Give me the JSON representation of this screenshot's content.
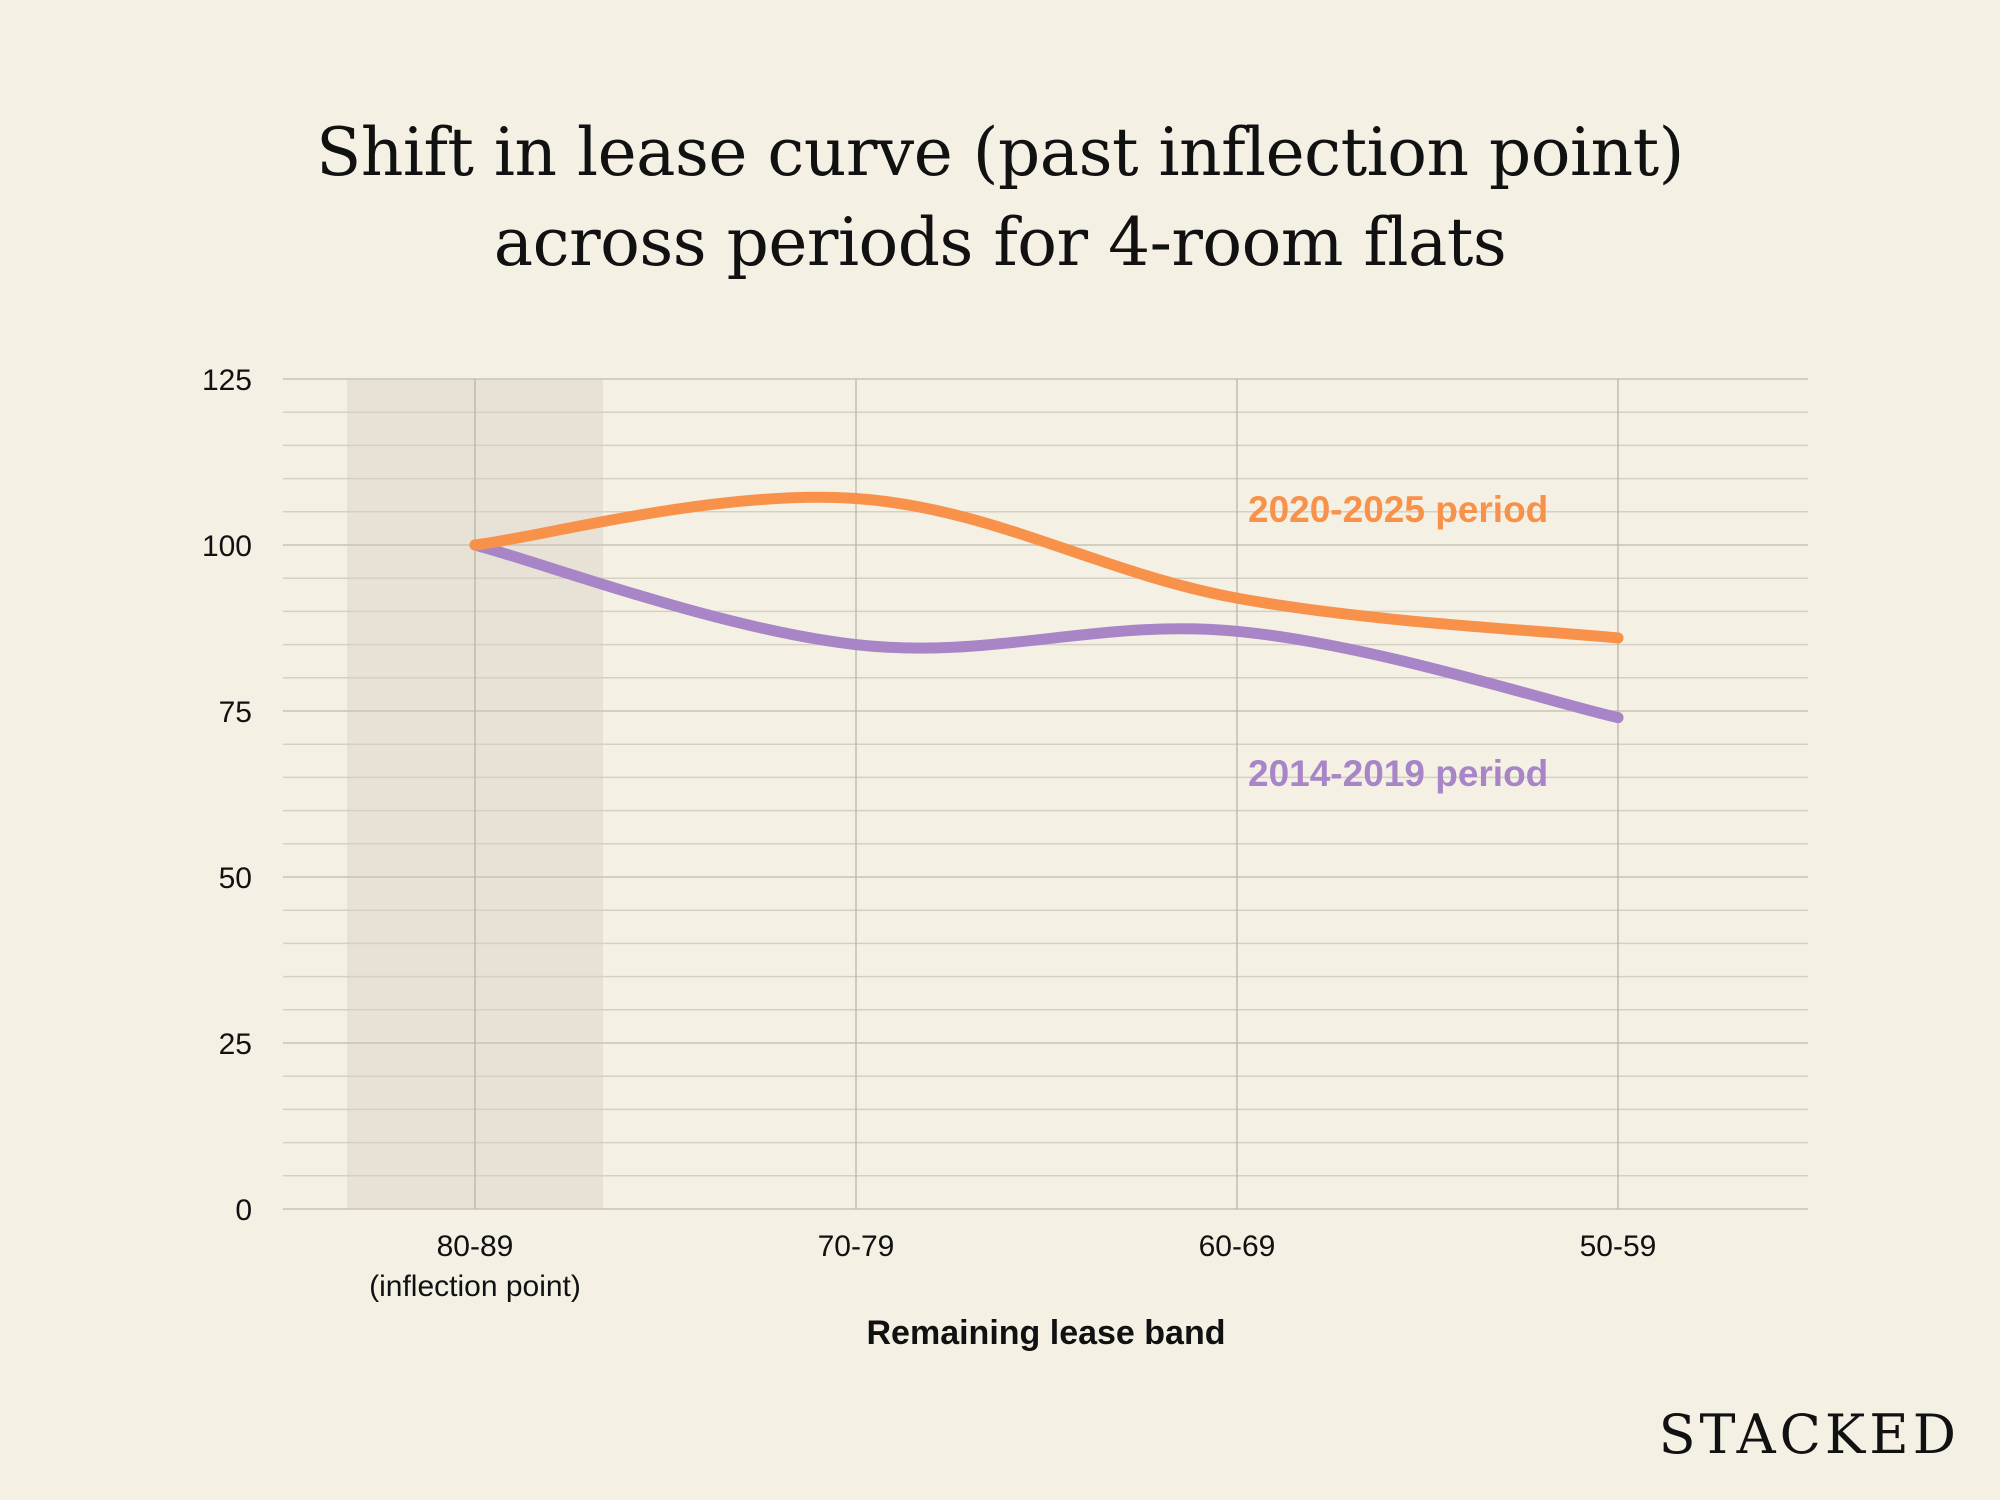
{
  "chart_data": {
    "type": "line",
    "title": [
      "Shift in lease curve (past inflection point)",
      "across periods for 4-room flats"
    ],
    "xlabel": "Remaining lease band",
    "ylabel": "",
    "categories": [
      "80-89",
      "70-79",
      "60-69",
      "50-59"
    ],
    "category_sublabels": [
      "(inflection point)",
      "",
      "",
      ""
    ],
    "ylim": [
      0,
      125
    ],
    "yticks": [
      0,
      25,
      50,
      75,
      100,
      125
    ],
    "grid": true,
    "highlight_band": "80-89",
    "series": [
      {
        "name": "2020-2025 period",
        "values": [
          100,
          107,
          92,
          86
        ],
        "color": "#f8914a"
      },
      {
        "name": "2014-2019 period",
        "values": [
          100,
          85,
          87,
          74
        ],
        "color": "#a785c6"
      }
    ]
  },
  "brand": "STACKED"
}
